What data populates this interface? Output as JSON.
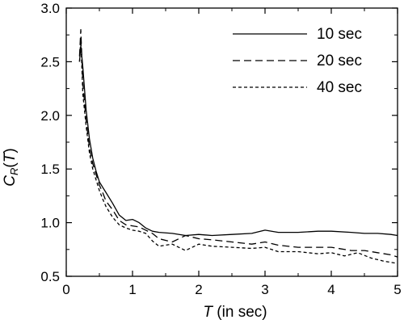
{
  "chart_data": {
    "type": "line",
    "xlabel": {
      "italic": "T",
      "rest": " (in sec)"
    },
    "ylabel": {
      "main": "C",
      "sub": "R",
      "open": "(",
      "var": "T",
      "close": ")"
    },
    "xlim": [
      0,
      5
    ],
    "ylim": [
      0.5,
      3.0
    ],
    "xticks": [
      0,
      1,
      2,
      3,
      4,
      5
    ],
    "yticks": [
      0.5,
      1.0,
      1.5,
      2.0,
      2.5,
      3.0
    ],
    "xtick_labels": [
      "0",
      "1",
      "2",
      "3",
      "4",
      "5"
    ],
    "ytick_labels": [
      "0.5",
      "1.0",
      "1.5",
      "2.0",
      "2.5",
      "3.0"
    ],
    "grid": false,
    "legend_position": "top-right",
    "series": [
      {
        "name": "10 sec",
        "dash": "solid",
        "x": [
          0.2,
          0.22,
          0.25,
          0.3,
          0.35,
          0.4,
          0.45,
          0.5,
          0.55,
          0.6,
          0.7,
          0.8,
          0.9,
          1.0,
          1.1,
          1.2,
          1.3,
          1.4,
          1.6,
          1.8,
          2.0,
          2.2,
          2.5,
          2.8,
          3.0,
          3.2,
          3.5,
          3.8,
          4.0,
          4.3,
          4.5,
          4.7,
          4.9,
          5.0
        ],
        "y": [
          2.5,
          2.65,
          2.45,
          2.05,
          1.78,
          1.6,
          1.48,
          1.38,
          1.33,
          1.28,
          1.18,
          1.07,
          1.02,
          1.03,
          1.0,
          0.95,
          0.92,
          0.91,
          0.9,
          0.88,
          0.89,
          0.88,
          0.89,
          0.9,
          0.93,
          0.91,
          0.91,
          0.92,
          0.92,
          0.91,
          0.9,
          0.9,
          0.89,
          0.88
        ]
      },
      {
        "name": "20 sec",
        "dash": "long-dash",
        "x": [
          0.2,
          0.22,
          0.25,
          0.3,
          0.35,
          0.4,
          0.45,
          0.5,
          0.55,
          0.6,
          0.7,
          0.8,
          0.9,
          1.0,
          1.1,
          1.2,
          1.3,
          1.4,
          1.6,
          1.8,
          2.0,
          2.2,
          2.5,
          2.8,
          3.0,
          3.2,
          3.5,
          3.8,
          4.0,
          4.3,
          4.5,
          4.7,
          4.9,
          5.0
        ],
        "y": [
          2.55,
          2.8,
          2.3,
          1.95,
          1.7,
          1.55,
          1.45,
          1.35,
          1.28,
          1.2,
          1.12,
          1.02,
          0.98,
          0.97,
          0.96,
          0.93,
          0.9,
          0.85,
          0.82,
          0.88,
          0.85,
          0.84,
          0.82,
          0.8,
          0.82,
          0.79,
          0.77,
          0.77,
          0.77,
          0.74,
          0.74,
          0.72,
          0.7,
          0.68
        ]
      },
      {
        "name": "40 sec",
        "dash": "short-dash",
        "x": [
          0.2,
          0.22,
          0.25,
          0.3,
          0.35,
          0.4,
          0.45,
          0.5,
          0.55,
          0.6,
          0.7,
          0.8,
          0.9,
          1.0,
          1.1,
          1.2,
          1.3,
          1.4,
          1.6,
          1.8,
          2.0,
          2.2,
          2.5,
          2.8,
          3.0,
          3.2,
          3.5,
          3.8,
          4.0,
          4.2,
          4.4,
          4.6,
          4.8,
          5.0
        ],
        "y": [
          2.5,
          2.72,
          2.2,
          1.9,
          1.65,
          1.5,
          1.4,
          1.3,
          1.22,
          1.15,
          1.05,
          0.98,
          0.95,
          0.93,
          0.92,
          0.9,
          0.83,
          0.78,
          0.8,
          0.74,
          0.8,
          0.78,
          0.77,
          0.76,
          0.77,
          0.73,
          0.73,
          0.71,
          0.72,
          0.69,
          0.72,
          0.67,
          0.64,
          0.62
        ]
      }
    ]
  }
}
